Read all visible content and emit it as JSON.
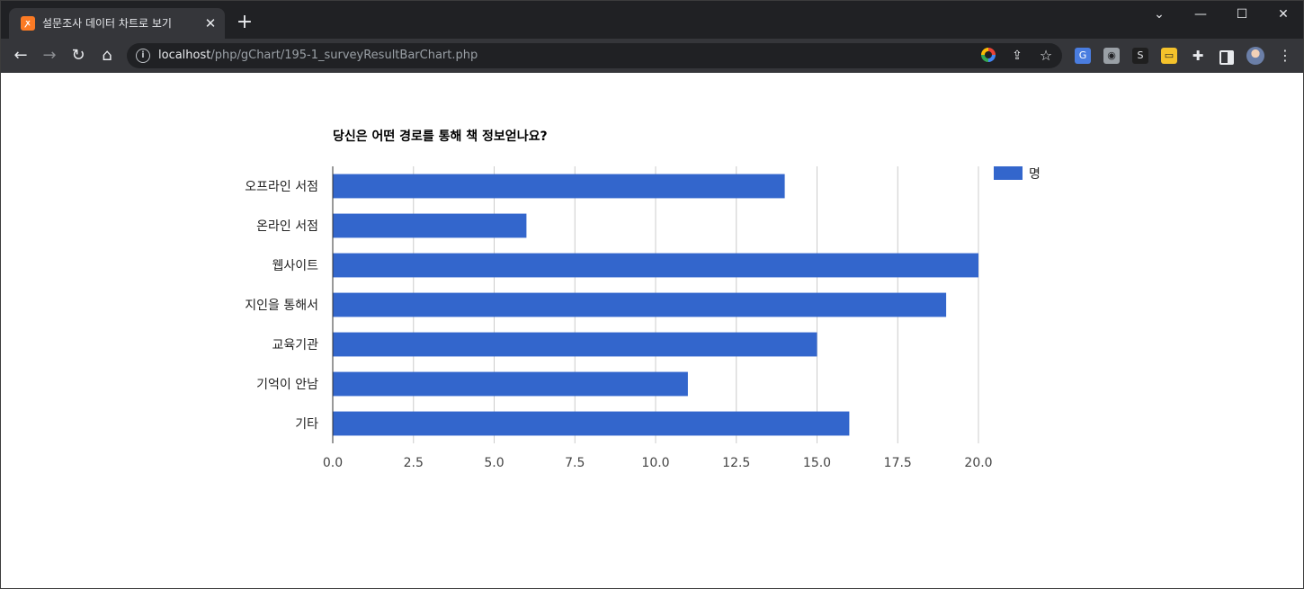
{
  "browser": {
    "tab_title": "설문조사 데이터 차트로 보기",
    "tab_favicon": "xampp-icon",
    "tab_close_glyph": "✕",
    "new_tab_glyph": "+",
    "url_host": "localhost",
    "url_path": "/php/gChart/195-1_surveyResultBarChart.php",
    "icons": [
      "back-arrow-icon",
      "forward-arrow-icon",
      "reload-icon",
      "home-icon",
      "info-icon",
      "google-icon",
      "share-icon",
      "star-icon",
      "translate-extension-icon",
      "camera-extension-icon",
      "s-extension-icon",
      "tag-extension-icon",
      "puzzle-extension-icon",
      "side-panel-icon",
      "profile-avatar",
      "kebab-menu-icon"
    ]
  },
  "colors": {
    "bar": "#3366cc",
    "gridline": "#cccccc",
    "axis": "#333333"
  },
  "chart_data": {
    "type": "bar",
    "orientation": "horizontal",
    "title": "당신은 어떤 경로를 통해 책 정보얻나요?",
    "categories": [
      "오프라인 서점",
      "온라인 서점",
      "웹사이트",
      "지인을 통해서",
      "교육기관",
      "기억이 안남",
      "기타"
    ],
    "series": [
      {
        "name": "명",
        "values": [
          14,
          6,
          20,
          19,
          15,
          11,
          16
        ]
      }
    ],
    "xlim": [
      0,
      20
    ],
    "x_ticks": [
      "0.0",
      "2.5",
      "5.0",
      "7.5",
      "10.0",
      "12.5",
      "15.0",
      "17.5",
      "20.0"
    ],
    "x_tick_values": [
      0,
      2.5,
      5,
      7.5,
      10,
      12.5,
      15,
      17.5,
      20
    ],
    "grid": true,
    "legend_position": "right"
  }
}
